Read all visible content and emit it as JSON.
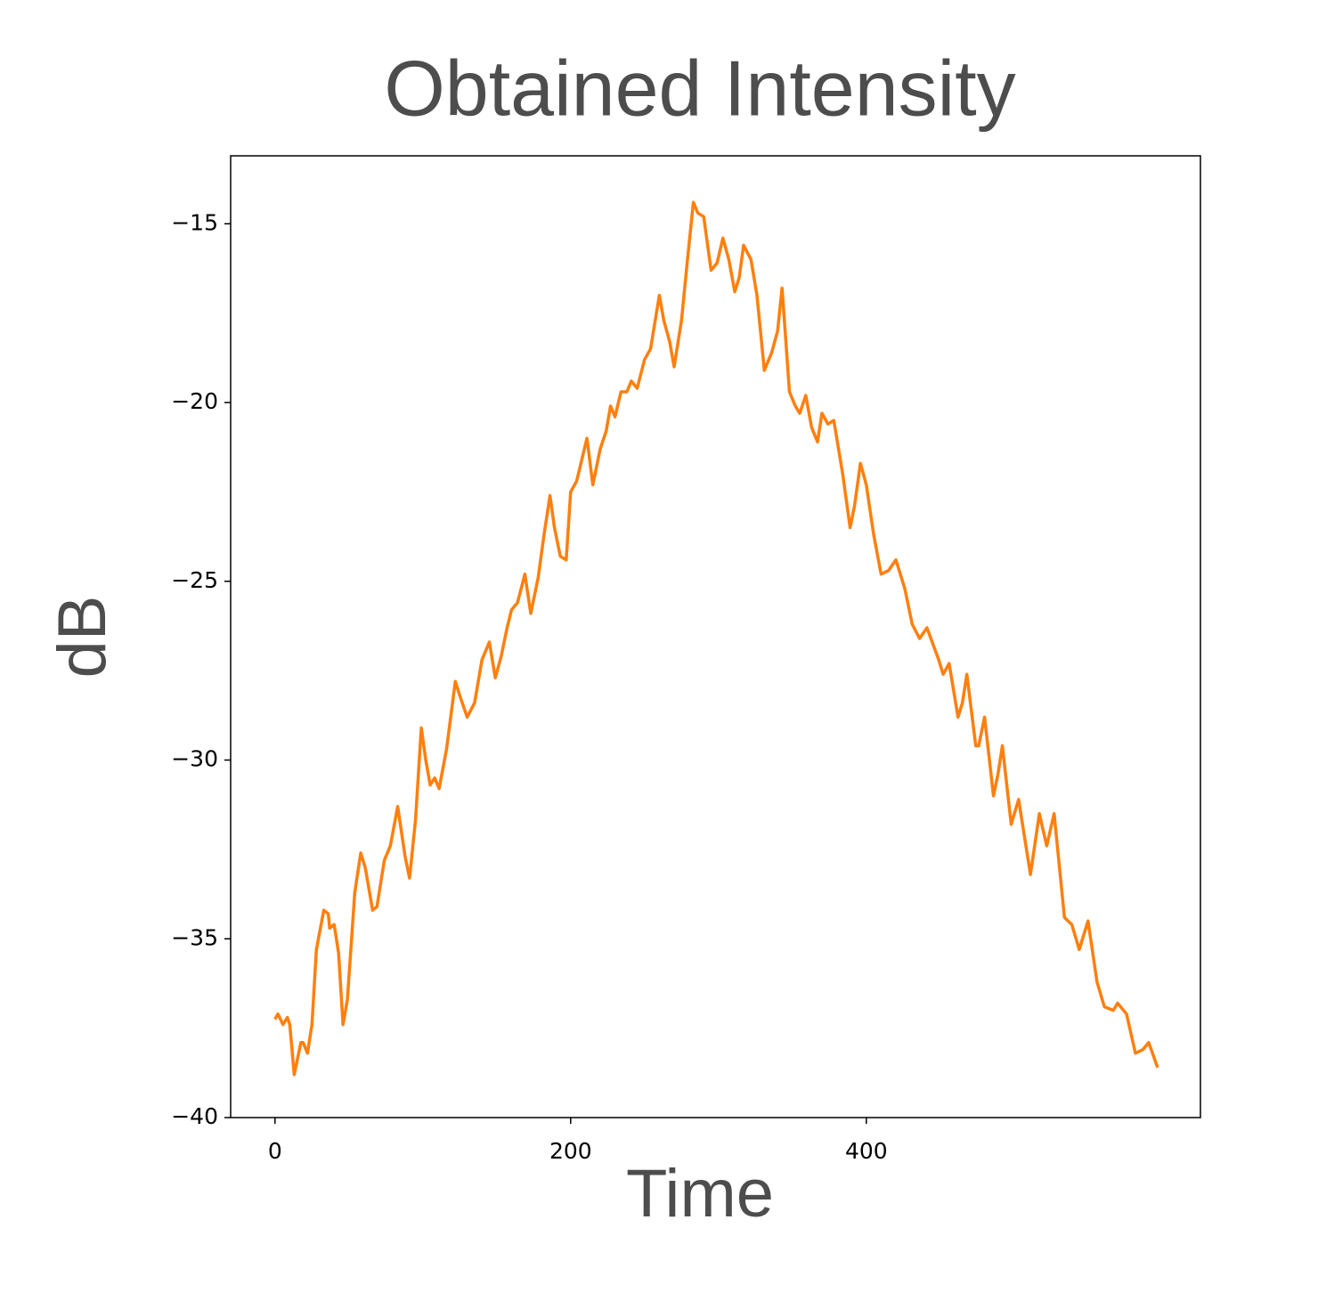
{
  "chart_data": {
    "type": "line",
    "title": "Obtained Intensity",
    "xlabel": "Time",
    "ylabel": "dB",
    "color": "#ff7f0e",
    "xlim": [
      -30,
      626
    ],
    "ylim": [
      -40,
      -13.1
    ],
    "xticks": [
      0,
      200,
      400
    ],
    "yticks": [
      {
        "value": -40,
        "label": "−40"
      },
      {
        "value": -35,
        "label": "−35"
      },
      {
        "value": -30,
        "label": "−30"
      },
      {
        "value": -25,
        "label": "−25"
      },
      {
        "value": -20,
        "label": "−20"
      },
      {
        "value": -15,
        "label": "−15"
      }
    ],
    "x": [
      0,
      2,
      5.4,
      8.4,
      10,
      13,
      15,
      17.5,
      19,
      22,
      25,
      28,
      33,
      36,
      37,
      40,
      43,
      46,
      49,
      54,
      58,
      61,
      66,
      69,
      74,
      78,
      83,
      88,
      91,
      95,
      99,
      102,
      105,
      108,
      111,
      116,
      122,
      125,
      130,
      135,
      140,
      145,
      149,
      153,
      157,
      160,
      164,
      169,
      173,
      178,
      182,
      186,
      189,
      193,
      197,
      200,
      204,
      211,
      215,
      220,
      224,
      227,
      230,
      234,
      238,
      241,
      245,
      250,
      254,
      260,
      263,
      267,
      270,
      275,
      279,
      283,
      286,
      290,
      295,
      299,
      303,
      307,
      311,
      314,
      317,
      322,
      326,
      331,
      336,
      340,
      343,
      348,
      352,
      355,
      359,
      363,
      367,
      370,
      374,
      378,
      384,
      389,
      392,
      396,
      400,
      405,
      410,
      415,
      420,
      426,
      431,
      436,
      441,
      449,
      452,
      456,
      462,
      465,
      468,
      474,
      476,
      480,
      486,
      489,
      492,
      498,
      503,
      511,
      517,
      522,
      527,
      534,
      539,
      544,
      550,
      556,
      561,
      567,
      570,
      576,
      582,
      587,
      591,
      597
    ],
    "values": [
      -37.25,
      -37.1,
      -37.4,
      -37.2,
      -37.4,
      -38.8,
      -38.4,
      -37.9,
      -37.9,
      -38.2,
      -37.4,
      -35.3,
      -34.2,
      -34.3,
      -34.7,
      -34.6,
      -35.4,
      -37.4,
      -36.7,
      -33.7,
      -32.6,
      -33,
      -34.2,
      -34.1,
      -32.8,
      -32.4,
      -31.3,
      -32.7,
      -33.3,
      -31.7,
      -29.1,
      -30,
      -30.7,
      -30.5,
      -30.8,
      -29.7,
      -27.8,
      -28.2,
      -28.8,
      -28.4,
      -27.2,
      -26.7,
      -27.7,
      -27.1,
      -26.3,
      -25.8,
      -25.6,
      -24.8,
      -25.9,
      -24.9,
      -23.7,
      -22.6,
      -23.5,
      -24.3,
      -24.4,
      -22.5,
      -22.2,
      -21,
      -22.3,
      -21.3,
      -20.8,
      -20.1,
      -20.4,
      -19.7,
      -19.7,
      -19.4,
      -19.6,
      -18.8,
      -18.5,
      -17,
      -17.7,
      -18.3,
      -19,
      -17.7,
      -16,
      -14.4,
      -14.7,
      -14.8,
      -16.3,
      -16.1,
      -15.4,
      -16,
      -16.9,
      -16.5,
      -15.6,
      -16,
      -17,
      -19.1,
      -18.6,
      -18,
      -16.8,
      -19.7,
      -20.1,
      -20.3,
      -19.8,
      -20.7,
      -21.1,
      -20.3,
      -20.6,
      -20.5,
      -22,
      -23.5,
      -22.9,
      -21.7,
      -22.3,
      -23.7,
      -24.8,
      -24.7,
      -24.4,
      -25.2,
      -26.2,
      -26.6,
      -26.3,
      -27.2,
      -27.6,
      -27.3,
      -28.8,
      -28.4,
      -27.6,
      -29.6,
      -29.6,
      -28.8,
      -31,
      -30.4,
      -29.6,
      -31.8,
      -31.1,
      -33.2,
      -31.5,
      -32.4,
      -31.5,
      -34.4,
      -34.6,
      -35.3,
      -34.5,
      -36.2,
      -36.9,
      -37,
      -36.8,
      -37.1,
      -38.2,
      -38.1,
      -37.9,
      -38.6
    ]
  }
}
